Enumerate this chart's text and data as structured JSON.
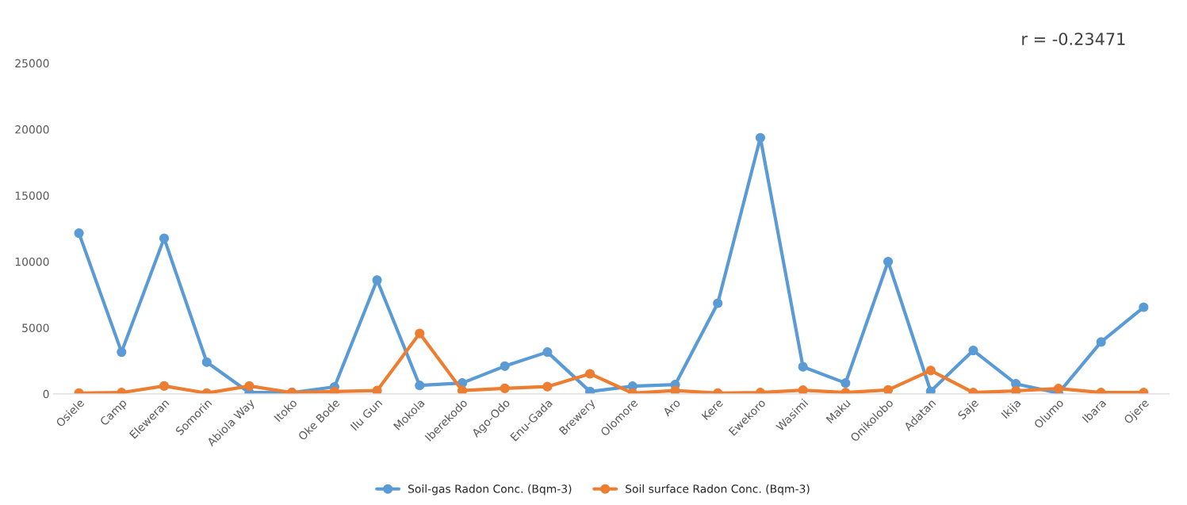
{
  "chart_data": {
    "type": "line",
    "categories": [
      "Osiele",
      "Camp",
      "Eleweran",
      "Somorin",
      "Abiola Way",
      "Itoko",
      "Oke Bode",
      "Ilu Gun",
      "Mokola",
      "Iberekodo",
      "Ago-Odo",
      "Enu-Gada",
      "Brewery",
      "Olomore",
      "Aro",
      "Kere",
      "Ewekoro",
      "Wasimi",
      "Maku",
      "Onikolobo",
      "Adatan",
      "Saje",
      "Ikija",
      "Olumo",
      "Ibara",
      "Ojere"
    ],
    "series": [
      {
        "name": "Soil-gas Radon Conc. (Bqm-3)",
        "color": "#5b9bd5",
        "values": [
          12150,
          3160,
          11760,
          2400,
          100,
          100,
          530,
          8600,
          640,
          820,
          2100,
          3160,
          180,
          580,
          700,
          6850,
          19360,
          2050,
          820,
          10000,
          200,
          3280,
          760,
          60,
          3920,
          6550
        ]
      },
      {
        "name": "Soil surface Radon Conc. (Bqm-3)",
        "color": "#ed7d31",
        "values": [
          60,
          100,
          600,
          60,
          600,
          100,
          180,
          250,
          4570,
          250,
          420,
          550,
          1520,
          60,
          250,
          60,
          100,
          280,
          100,
          300,
          1770,
          100,
          230,
          400,
          100,
          100
        ]
      }
    ],
    "ylim": [
      0,
      25000
    ],
    "yticks": [
      0,
      5000,
      10000,
      15000,
      20000,
      25000
    ],
    "grid": false,
    "legend": "bottom",
    "marker": "circle",
    "line_style": "solid",
    "annotations": [
      "r = -0.23471"
    ]
  }
}
